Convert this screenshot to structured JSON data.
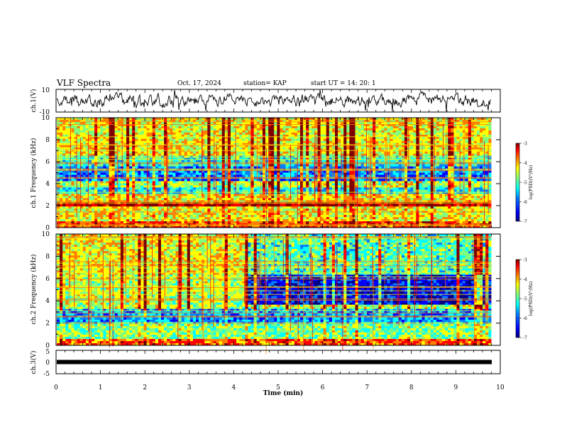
{
  "header": {
    "title": "VLF Spectra",
    "date": "Oct. 17, 2024",
    "station": "station= KAP",
    "start_ut": "start  UT =   14: 20: 1"
  },
  "colors": {
    "background": "#ffffff",
    "axes": "#000000",
    "colormap": [
      "#00007f",
      "#0000ff",
      "#007fff",
      "#00ffff",
      "#7fff7f",
      "#ffff00",
      "#ff7f00",
      "#ff0000",
      "#7f0000"
    ]
  },
  "chart_data": [
    {
      "id": "ch1-waveform",
      "type": "line",
      "ylabel": "ch.1(V)",
      "ylim": [
        -10,
        10
      ],
      "yticks": [
        "10",
        "-10"
      ],
      "xlim": [
        0,
        10
      ],
      "description_values": {
        "mean": 0,
        "amplitude_range": [
          -8,
          8
        ]
      }
    },
    {
      "id": "ch1-spectrogram",
      "type": "heatmap",
      "ylabel": "ch.1 Frequency (kHz)",
      "ylim": [
        0,
        10
      ],
      "yticks": [
        "0",
        "2",
        "4",
        "6",
        "8",
        "10"
      ],
      "xlim": [
        0,
        10
      ],
      "data_end_min": 9.8,
      "bands": [
        {
          "f_lo": 0.0,
          "f_hi": 0.6,
          "level": 0.78
        },
        {
          "f_lo": 0.6,
          "f_hi": 2.0,
          "level": 0.6
        },
        {
          "f_lo": 2.0,
          "f_hi": 2.3,
          "level": 0.9
        },
        {
          "f_lo": 2.3,
          "f_hi": 3.0,
          "level": 0.62
        },
        {
          "f_lo": 3.0,
          "f_hi": 3.7,
          "level": 0.38
        },
        {
          "f_lo": 3.7,
          "f_hi": 4.2,
          "level": 0.55
        },
        {
          "f_lo": 4.2,
          "f_hi": 5.5,
          "level": 0.28
        },
        {
          "f_lo": 5.5,
          "f_hi": 6.6,
          "level": 0.42
        },
        {
          "f_lo": 6.6,
          "f_hi": 10.0,
          "level": 0.6
        }
      ],
      "colorbar": {
        "label": "log(PSD)(V²/Hz)",
        "range": [
          -7,
          -3
        ],
        "ticks": [
          "-3",
          "-4",
          "-5",
          "-6",
          "-7"
        ]
      }
    },
    {
      "id": "ch2-spectrogram",
      "type": "heatmap",
      "ylabel": "ch.2 Frequency (kHz)",
      "ylim": [
        0,
        10
      ],
      "yticks": [
        "0",
        "2",
        "4",
        "6",
        "8",
        "10"
      ],
      "xlim": [
        0,
        10
      ],
      "data_end_min": 9.8,
      "transition_min": 4.3,
      "bands": [
        {
          "f_lo": 0.0,
          "f_hi": 0.6,
          "level": 0.75
        },
        {
          "f_lo": 0.6,
          "f_hi": 2.0,
          "level": 0.5
        },
        {
          "f_lo": 2.0,
          "f_hi": 3.2,
          "level": 0.3
        },
        {
          "f_lo": 3.2,
          "f_hi": 3.6,
          "level": 0.55
        },
        {
          "f_lo": 3.6,
          "f_hi": 6.4,
          "level": 0.55,
          "level_after": 0.15
        },
        {
          "f_lo": 6.4,
          "f_hi": 10.0,
          "level": 0.6,
          "level_after": 0.45
        }
      ],
      "colorbar": {
        "label": "log(PSD)(V²/Hz)",
        "range": [
          -7,
          -3
        ],
        "ticks": [
          "-3",
          "-4",
          "-5",
          "-6",
          "-7"
        ]
      }
    },
    {
      "id": "ch3-waveform",
      "type": "line",
      "ylabel": "ch.3(V)",
      "ylim": [
        -5,
        5
      ],
      "yticks": [
        "5",
        "0",
        "-5"
      ],
      "xlim": [
        0,
        10
      ],
      "xlabel": "Time  (min)",
      "xticks": [
        "0",
        "1",
        "2",
        "3",
        "4",
        "5",
        "6",
        "7",
        "8",
        "9",
        "10"
      ],
      "value": 0
    }
  ]
}
